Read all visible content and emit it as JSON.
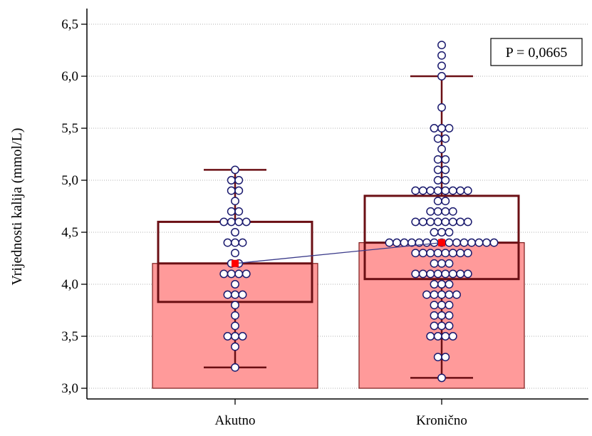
{
  "chart_data": {
    "type": "bar",
    "subtype": "bar with box plot and dot plot overlay",
    "ylabel": "Vrijednosti kalija (mmol/L)",
    "xlabel": "",
    "ylim": [
      3.0,
      6.5
    ],
    "yticks": [
      "3,0",
      "3,5",
      "4,0",
      "4,5",
      "5,0",
      "5,5",
      "6,0",
      "6,5"
    ],
    "ytick_values": [
      3.0,
      3.5,
      4.0,
      4.5,
      5.0,
      5.5,
      6.0,
      6.5
    ],
    "grid": true,
    "categories": [
      "Akutno",
      "Kronično"
    ],
    "bar_values": [
      4.2,
      4.4
    ],
    "medians": [
      4.2,
      4.4
    ],
    "boxes": [
      {
        "q1": 3.83,
        "q3": 4.6,
        "whisker_low": 3.2,
        "whisker_high": 5.1
      },
      {
        "q1": 4.05,
        "q3": 4.85,
        "whisker_low": 3.1,
        "whisker_high": 6.0
      }
    ],
    "points": [
      [
        3.2,
        3.4,
        3.5,
        3.5,
        3.5,
        3.6,
        3.7,
        3.8,
        3.9,
        3.9,
        3.9,
        4.0,
        4.1,
        4.1,
        4.1,
        4.1,
        4.2,
        4.2,
        4.3,
        4.4,
        4.4,
        4.4,
        4.5,
        4.6,
        4.6,
        4.6,
        4.6,
        4.7,
        4.7,
        4.8,
        4.9,
        4.9,
        5.0,
        5.0,
        5.1
      ],
      [
        3.1,
        3.3,
        3.3,
        3.5,
        3.5,
        3.5,
        3.5,
        3.6,
        3.6,
        3.6,
        3.7,
        3.7,
        3.7,
        3.8,
        3.8,
        3.8,
        3.9,
        3.9,
        3.9,
        3.9,
        3.9,
        4.0,
        4.0,
        4.0,
        4.1,
        4.1,
        4.1,
        4.1,
        4.1,
        4.1,
        4.1,
        4.1,
        4.2,
        4.2,
        4.2,
        4.3,
        4.3,
        4.3,
        4.3,
        4.3,
        4.3,
        4.3,
        4.3,
        4.4,
        4.4,
        4.4,
        4.4,
        4.4,
        4.4,
        4.4,
        4.4,
        4.4,
        4.4,
        4.4,
        4.4,
        4.4,
        4.4,
        4.4,
        4.5,
        4.5,
        4.5,
        4.6,
        4.6,
        4.6,
        4.6,
        4.6,
        4.6,
        4.6,
        4.6,
        4.7,
        4.7,
        4.7,
        4.7,
        4.8,
        4.8,
        4.9,
        4.9,
        4.9,
        4.9,
        4.9,
        4.9,
        4.9,
        4.9,
        5.0,
        5.0,
        5.1,
        5.1,
        5.2,
        5.2,
        5.3,
        5.4,
        5.4,
        5.5,
        5.5,
        5.5,
        5.7,
        6.0,
        6.1,
        6.2,
        6.3
      ]
    ],
    "annotation": "P = 0,0665",
    "colors": {
      "bar_fill": "#ff9a9a",
      "bar_stroke": "#7a1a1a",
      "box_stroke": "#6b0f14",
      "whisker": "#6b0f14",
      "point_stroke": "#1a1a6e",
      "point_fill": "#ffffff",
      "mean_marker": "#ff0000",
      "connector": "#3b3b8a"
    }
  }
}
